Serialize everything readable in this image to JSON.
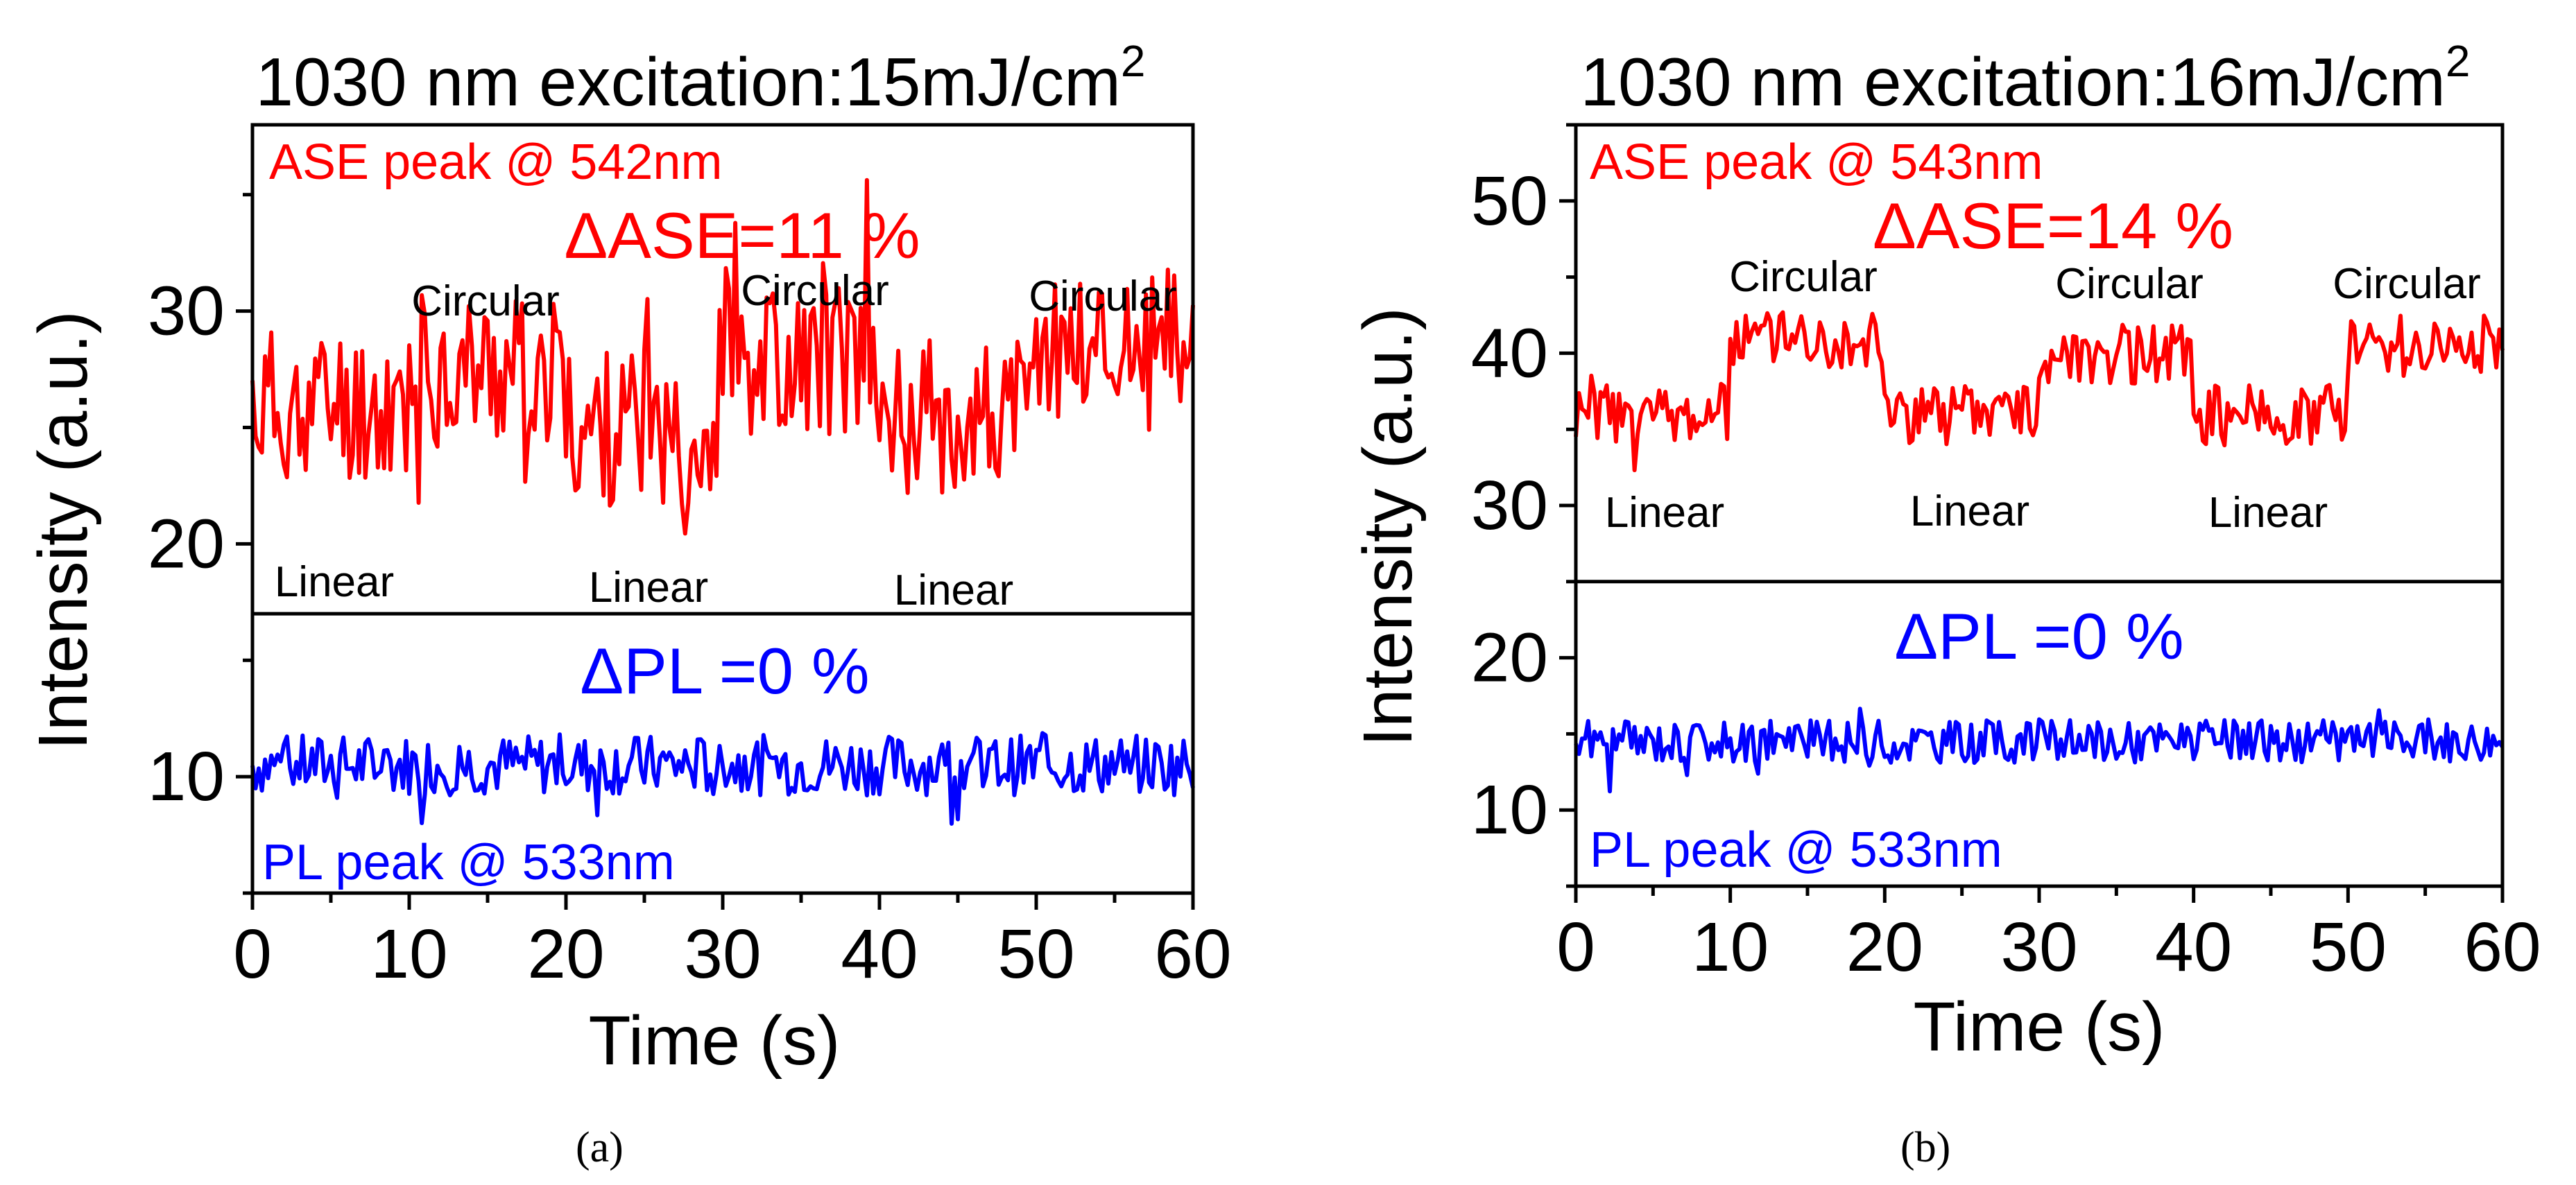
{
  "chart_data": [
    {
      "type": "line",
      "panel": "a",
      "title_text": "1030 nm excitation:15mJ/cm",
      "title_sup": "2",
      "xlabel": "Time (s)",
      "ylabel": "Intensity (a.u.)",
      "xlim": [
        0,
        60
      ],
      "ylim": [
        5,
        38
      ],
      "xticks": [
        "0",
        "10",
        "20",
        "30",
        "40",
        "50",
        "60"
      ],
      "yticks": [
        "10",
        "20",
        "30"
      ],
      "divider_y": 17,
      "caption": "(a)",
      "series": [
        {
          "name": "ASE peak @ 542nm",
          "color": "#ff0000",
          "base": 25.5,
          "noise": 3.4,
          "seed": 11,
          "steps": [
            {
              "t": 0,
              "v": 26
            },
            {
              "t": 10,
              "v": 27.5
            },
            {
              "t": 20,
              "v": 25
            },
            {
              "t": 30,
              "v": 28
            },
            {
              "t": 40,
              "v": 25.5
            },
            {
              "t": 50,
              "v": 28.5
            },
            {
              "t": 60,
              "v": 27
            }
          ]
        },
        {
          "name": "PL peak @ 533nm",
          "color": "#0000ff",
          "base": 10.5,
          "noise": 1.3,
          "seed": 7,
          "steps": [
            {
              "t": 0,
              "v": 10.5
            },
            {
              "t": 60,
              "v": 10.5
            }
          ]
        }
      ],
      "labels": {
        "ase_peak": "ASE peak @ 542nm",
        "delta_ase": "ΔASE=11 %",
        "delta_pl": "ΔPL =0 %",
        "pl_peak": "PL peak @ 533nm",
        "annotations": [
          "Circular",
          "Circular",
          "Circular",
          "Linear",
          "Linear",
          "Linear"
        ]
      }
    },
    {
      "type": "line",
      "panel": "b",
      "title_text": "1030 nm excitation:16mJ/cm",
      "title_sup": "2",
      "xlabel": "Time (s)",
      "ylabel": "Intensity (a.u.)",
      "xlim": [
        0,
        60
      ],
      "ylim": [
        5,
        55
      ],
      "xticks": [
        "0",
        "10",
        "20",
        "30",
        "40",
        "50",
        "60"
      ],
      "yticks": [
        "10",
        "20",
        "30",
        "40",
        "50"
      ],
      "divider_y": 25,
      "caption": "(b)",
      "series": [
        {
          "name": "ASE peak @ 543nm",
          "color": "#ff0000",
          "base": 38,
          "noise": 2.0,
          "seed": 23,
          "steps": [
            {
              "t": 0,
              "v": 36
            },
            {
              "t": 10,
              "v": 41
            },
            {
              "t": 20,
              "v": 36
            },
            {
              "t": 30,
              "v": 40
            },
            {
              "t": 40,
              "v": 36
            },
            {
              "t": 50,
              "v": 40.5
            },
            {
              "t": 60,
              "v": 40
            }
          ]
        },
        {
          "name": "PL peak @ 533nm",
          "color": "#0000ff",
          "base": 15,
          "noise": 1.4,
          "seed": 31,
          "steps": [
            {
              "t": 0,
              "v": 14.5
            },
            {
              "t": 60,
              "v": 15.5
            }
          ]
        }
      ],
      "labels": {
        "ase_peak": "ASE peak @ 543nm",
        "delta_ase": "ΔASE=14 %",
        "delta_pl": "ΔPL =0 %",
        "pl_peak": "PL peak @ 533nm",
        "annotations": [
          "Circular",
          "Circular",
          "Circular",
          "Linear",
          "Linear",
          "Linear"
        ]
      }
    }
  ]
}
